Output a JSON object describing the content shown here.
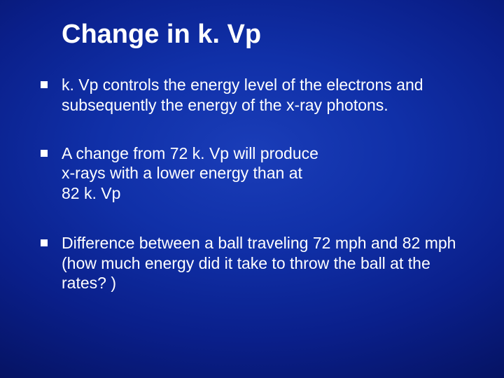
{
  "slide": {
    "title": "Change in k. Vp",
    "title_fontsize": 38,
    "title_color": "#ffffff",
    "body_fontsize": 23,
    "body_color": "#ffffff",
    "bullet_color": "#ffffff",
    "bullet_size": 10,
    "background_gradient": {
      "type": "radial",
      "stops": [
        "#1a3db8",
        "#1030a8",
        "#0a1f8a",
        "#051260",
        "#020a3a"
      ]
    },
    "bullets": [
      {
        "text": "k. Vp controls the energy level of the electrons and subsequently the energy of the x-ray photons.",
        "gap_after": 40
      },
      {
        "text": "A change from 72 k. Vp will produce\nx-rays with a lower energy than at\n82 k. Vp",
        "gap_after": 42
      },
      {
        "text": "Difference between a ball traveling 72 mph and 82 mph (how much energy did it take to throw the ball at the rates? )",
        "gap_after": 0
      }
    ]
  }
}
